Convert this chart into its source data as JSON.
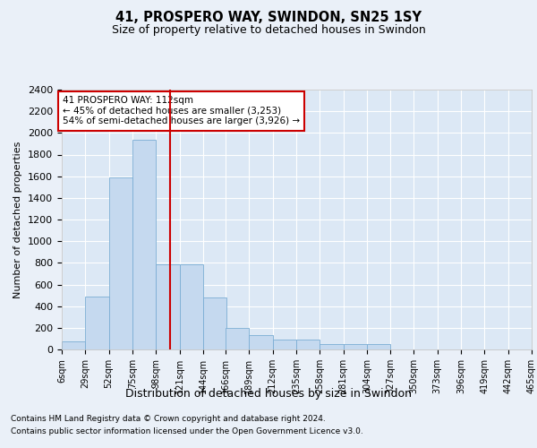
{
  "title1": "41, PROSPERO WAY, SWINDON, SN25 1SY",
  "title2": "Size of property relative to detached houses in Swindon",
  "xlabel": "Distribution of detached houses by size in Swindon",
  "ylabel": "Number of detached properties",
  "footer1": "Contains HM Land Registry data © Crown copyright and database right 2024.",
  "footer2": "Contains public sector information licensed under the Open Government Licence v3.0.",
  "annotation_line1": "41 PROSPERO WAY: 112sqm",
  "annotation_line2": "← 45% of detached houses are smaller (3,253)",
  "annotation_line3": "54% of semi-detached houses are larger (3,926) →",
  "property_size": 112,
  "bar_color": "#c5d9ef",
  "bar_edge_color": "#7badd4",
  "vline_color": "#cc0000",
  "annotation_box_edge": "#cc0000",
  "background_color": "#eaf0f8",
  "plot_bg_color": "#dce8f5",
  "grid_color": "#ffffff",
  "bins": [
    6,
    29,
    52,
    75,
    98,
    121,
    144,
    166,
    189,
    212,
    235,
    258,
    281,
    304,
    327,
    350,
    373,
    396,
    419,
    442,
    465
  ],
  "bin_labels": [
    "6sqm",
    "29sqm",
    "52sqm",
    "75sqm",
    "98sqm",
    "121sqm",
    "144sqm",
    "166sqm",
    "189sqm",
    "212sqm",
    "235sqm",
    "258sqm",
    "281sqm",
    "304sqm",
    "327sqm",
    "350sqm",
    "373sqm",
    "396sqm",
    "419sqm",
    "442sqm",
    "465sqm"
  ],
  "counts": [
    75,
    490,
    1590,
    1940,
    790,
    790,
    480,
    200,
    130,
    90,
    90,
    50,
    50,
    50,
    0,
    0,
    0,
    0,
    0,
    0
  ],
  "ylim": [
    0,
    2400
  ],
  "yticks": [
    0,
    200,
    400,
    600,
    800,
    1000,
    1200,
    1400,
    1600,
    1800,
    2000,
    2200,
    2400
  ]
}
